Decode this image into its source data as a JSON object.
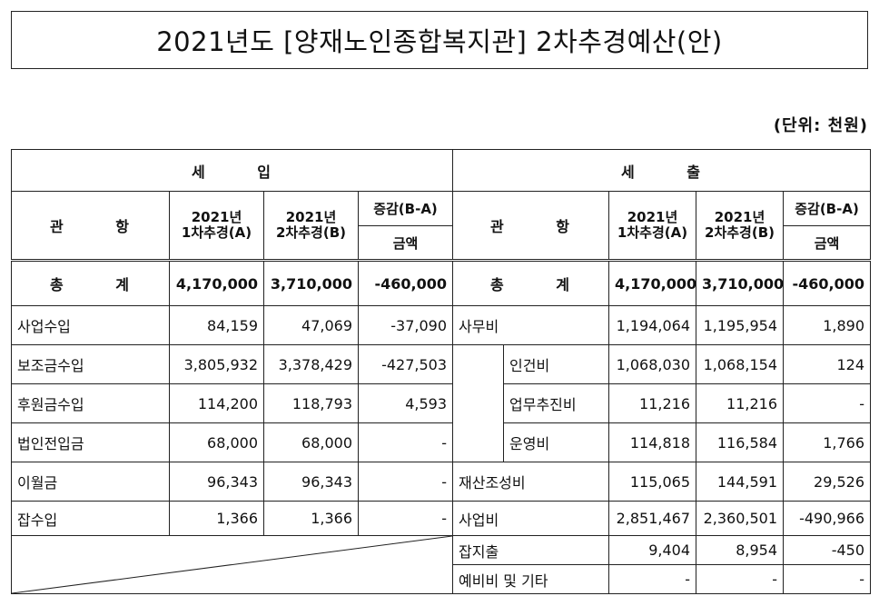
{
  "title": "2021년도 [양재노인종합복지관] 2차추경예산(안)",
  "unit": "(단위: 천원)",
  "income_header": "세   입",
  "expense_header": "세   출",
  "col_gwan_hang": "관   항",
  "col_a": "2021년\n1차추경(A)",
  "col_a_line1": "2021년",
  "col_a_line2": "1차추경(A)",
  "col_b_line1": "2021년",
  "col_b_line2": "2차추경(B)",
  "col_diff": "증감(B-A)",
  "col_amount": "금액",
  "total": {
    "label": "총   계",
    "income": [
      "4,170,000",
      "3,710,000",
      "-460,000"
    ],
    "expense": [
      "4,170,000",
      "3,710,000",
      "-460,000"
    ]
  },
  "income_rows": [
    {
      "name": "사업수입",
      "a": "84,159",
      "b": "47,069",
      "d": "-37,090"
    },
    {
      "name": "보조금수입",
      "a": "3,805,932",
      "b": "3,378,429",
      "d": "-427,503"
    },
    {
      "name": "후원금수입",
      "a": "114,200",
      "b": "118,793",
      "d": "4,593"
    },
    {
      "name": "법인전입금",
      "a": "68,000",
      "b": "68,000",
      "d": "-"
    },
    {
      "name": "이월금",
      "a": "96,343",
      "b": "96,343",
      "d": "-"
    },
    {
      "name": "잡수입",
      "a": "1,366",
      "b": "1,366",
      "d": "-"
    }
  ],
  "expense_rows": [
    {
      "name": "사무비",
      "a": "1,194,064",
      "b": "1,195,954",
      "d": "1,890"
    },
    {
      "name": "인건비",
      "a": "1,068,030",
      "b": "1,068,154",
      "d": "124"
    },
    {
      "name": "업무추진비",
      "a": "11,216",
      "b": "11,216",
      "d": "-"
    },
    {
      "name": "운영비",
      "a": "114,818",
      "b": "116,584",
      "d": "1,766"
    },
    {
      "name": "재산조성비",
      "a": "115,065",
      "b": "144,591",
      "d": "29,526"
    },
    {
      "name": "사업비",
      "a": "2,851,467",
      "b": "2,360,501",
      "d": "-490,966"
    },
    {
      "name": "잡지출",
      "a": "9,404",
      "b": "8,954",
      "d": "-450"
    },
    {
      "name": "예비비 및 기타",
      "a": "-",
      "b": "-",
      "d": "-"
    }
  ]
}
